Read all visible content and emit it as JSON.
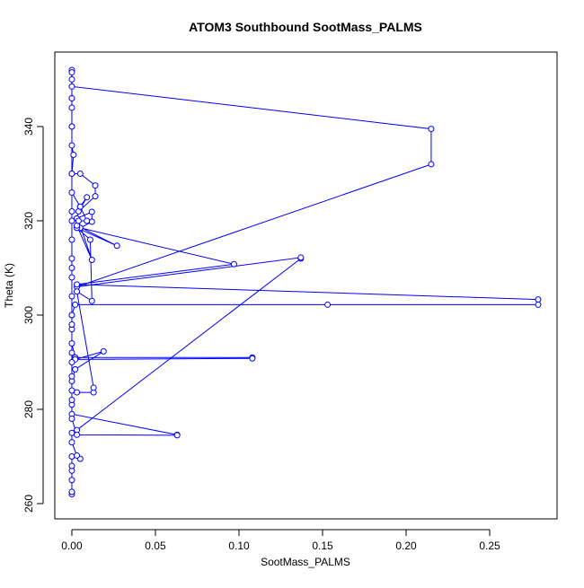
{
  "chart_data": {
    "type": "line",
    "title": "ATOM3 Southbound SootMass_PALMS",
    "x_label": "SootMass_PALMS",
    "y_label": "Theta (K)",
    "color": "#0000ff",
    "markers": true,
    "x": [
      0,
      0,
      0,
      0,
      0,
      0,
      0.005,
      0.003,
      0,
      0,
      0.003,
      0.137,
      0.137,
      0.003,
      0.215,
      0.215,
      0,
      0,
      0,
      0,
      0,
      0,
      0,
      0,
      0.001,
      0,
      0.005,
      0.014,
      0.014,
      0.004,
      0.009,
      0.005,
      0.003,
      0.012,
      0.012,
      0.005,
      0.097,
      0.003,
      0.279,
      0.279,
      0.153,
      0.002,
      0,
      0,
      0,
      0.002,
      0.108,
      0.108,
      0.002,
      0.019,
      0.002,
      0,
      0,
      0.003,
      0.013,
      0.013,
      0.003,
      0.012,
      0.011,
      0.003,
      0.027,
      0.003,
      0.012,
      0.004,
      0.009,
      0.005,
      0,
      0,
      0,
      0,
      0,
      0,
      0,
      0,
      0,
      0,
      0,
      0.063,
      0.063,
      0.003,
      0,
      0,
      0,
      0,
      0,
      0,
      0,
      0,
      0
    ],
    "values": [
      262,
      262.5,
      265,
      267,
      268,
      270,
      269.5,
      270.2,
      273,
      275,
      275.6,
      312,
      312.2,
      306,
      332,
      339.5,
      348.5,
      350,
      352,
      351.5,
      346,
      344,
      340,
      336,
      334,
      330,
      330,
      327.5,
      325.2,
      322,
      325,
      323,
      320.5,
      321.9,
      319.8,
      318.5,
      310.8,
      306.5,
      303.3,
      302.2,
      302.2,
      302.2,
      300,
      297,
      294,
      291,
      291,
      290.8,
      290.6,
      292.3,
      288.5,
      286,
      284,
      283.6,
      283.6,
      284.6,
      305,
      303,
      316,
      318.5,
      314.7,
      319,
      311.7,
      320,
      320,
      323,
      326,
      322,
      316,
      312,
      308,
      304,
      298,
      292,
      287,
      281,
      279,
      274.6,
      274.5,
      274.6,
      278,
      282,
      290,
      300,
      310,
      320,
      330,
      340,
      346
    ],
    "xlim": [
      -0.0102,
      0.2903
    ],
    "ylim": [
      256.76,
      355.8
    ],
    "xticks": [
      {
        "value": 0,
        "label": "0.00"
      },
      {
        "value": 0.05,
        "label": "0.05"
      },
      {
        "value": 0.1,
        "label": "0.10"
      },
      {
        "value": 0.15,
        "label": "0.15"
      },
      {
        "value": 0.2,
        "label": "0.20"
      },
      {
        "value": 0.25,
        "label": "0.25"
      }
    ],
    "yticks": [
      260,
      280,
      300,
      320,
      340
    ]
  }
}
